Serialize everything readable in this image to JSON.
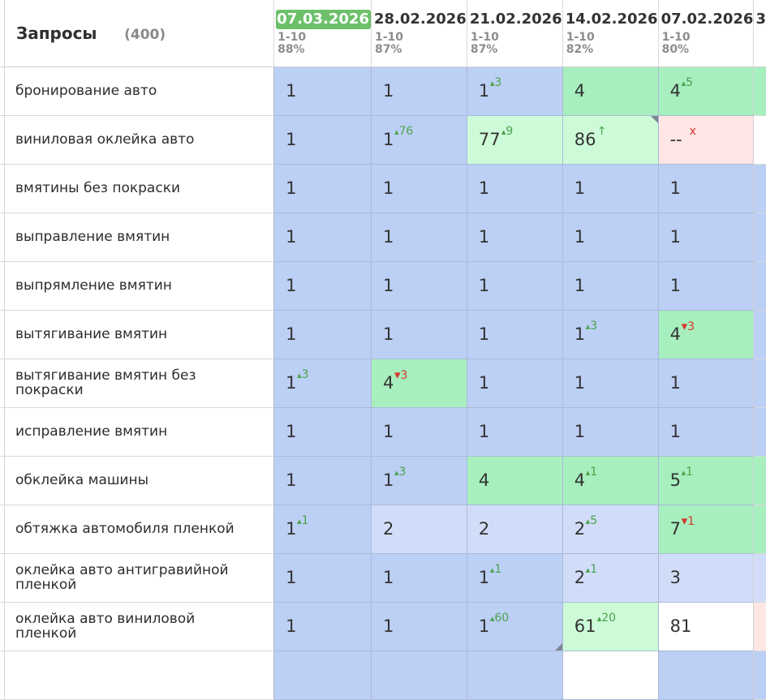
{
  "header": {
    "queries_title": "Запросы",
    "queries_count": "(400)",
    "next_date_stub": "3"
  },
  "dates": [
    {
      "date": "07.03.2026",
      "range": "1-10",
      "percent": "88%",
      "active": true
    },
    {
      "date": "28.02.2026",
      "range": "1-10",
      "percent": "87%",
      "active": false
    },
    {
      "date": "21.02.2026",
      "range": "1-10",
      "percent": "87%",
      "active": false
    },
    {
      "date": "14.02.2026",
      "range": "1-10",
      "percent": "82%",
      "active": false
    },
    {
      "date": "07.02.2026",
      "range": "1-10",
      "percent": "80%",
      "active": false
    }
  ],
  "rows": [
    {
      "query": "бронирование авто",
      "edge": "green",
      "cells": [
        {
          "value": "1",
          "color": "top"
        },
        {
          "value": "1",
          "color": "top"
        },
        {
          "value": "1",
          "color": "top",
          "delta": "3",
          "dir": "up"
        },
        {
          "value": "4",
          "color": "green"
        },
        {
          "value": "4",
          "color": "green",
          "delta": "5",
          "dir": "up"
        }
      ]
    },
    {
      "query": "виниловая оклейка авто",
      "edge": "white",
      "cells": [
        {
          "value": "1",
          "color": "top"
        },
        {
          "value": "1",
          "color": "top",
          "delta": "76",
          "dir": "up"
        },
        {
          "value": "77",
          "color": "lgreen",
          "delta": "9",
          "dir": "up"
        },
        {
          "value": "86",
          "color": "lgreen",
          "delta": "↑",
          "dir": "arrow",
          "corner": "top"
        },
        {
          "value": "--",
          "color": "red",
          "delta": "x",
          "dir": "x"
        }
      ]
    },
    {
      "query": "вмятины без покраски",
      "edge": "top",
      "cells": [
        {
          "value": "1",
          "color": "top"
        },
        {
          "value": "1",
          "color": "top"
        },
        {
          "value": "1",
          "color": "top"
        },
        {
          "value": "1",
          "color": "top"
        },
        {
          "value": "1",
          "color": "top"
        }
      ]
    },
    {
      "query": "выправление вмятин",
      "edge": "top",
      "cells": [
        {
          "value": "1",
          "color": "top"
        },
        {
          "value": "1",
          "color": "top"
        },
        {
          "value": "1",
          "color": "top"
        },
        {
          "value": "1",
          "color": "top"
        },
        {
          "value": "1",
          "color": "top"
        }
      ]
    },
    {
      "query": "выпрямление вмятин",
      "edge": "top",
      "cells": [
        {
          "value": "1",
          "color": "top"
        },
        {
          "value": "1",
          "color": "top"
        },
        {
          "value": "1",
          "color": "top"
        },
        {
          "value": "1",
          "color": "top"
        },
        {
          "value": "1",
          "color": "top"
        }
      ]
    },
    {
      "query": "вытягивание вмятин",
      "edge": "top",
      "cells": [
        {
          "value": "1",
          "color": "top"
        },
        {
          "value": "1",
          "color": "top"
        },
        {
          "value": "1",
          "color": "top"
        },
        {
          "value": "1",
          "color": "top",
          "delta": "3",
          "dir": "up"
        },
        {
          "value": "4",
          "color": "green",
          "delta": "3",
          "dir": "down"
        }
      ]
    },
    {
      "query": "вытягивание вмятин без покраски",
      "edge": "top",
      "cells": [
        {
          "value": "1",
          "color": "top",
          "delta": "3",
          "dir": "up"
        },
        {
          "value": "4",
          "color": "green",
          "delta": "3",
          "dir": "down"
        },
        {
          "value": "1",
          "color": "top"
        },
        {
          "value": "1",
          "color": "top"
        },
        {
          "value": "1",
          "color": "top"
        }
      ]
    },
    {
      "query": "исправление вмятин",
      "edge": "top",
      "cells": [
        {
          "value": "1",
          "color": "top"
        },
        {
          "value": "1",
          "color": "top"
        },
        {
          "value": "1",
          "color": "top"
        },
        {
          "value": "1",
          "color": "top"
        },
        {
          "value": "1",
          "color": "top"
        }
      ]
    },
    {
      "query": "обклейка машины",
      "edge": "green",
      "cells": [
        {
          "value": "1",
          "color": "top"
        },
        {
          "value": "1",
          "color": "top",
          "delta": "3",
          "dir": "up"
        },
        {
          "value": "4",
          "color": "green"
        },
        {
          "value": "4",
          "color": "green",
          "delta": "1",
          "dir": "up"
        },
        {
          "value": "5",
          "color": "green",
          "delta": "1",
          "dir": "up"
        }
      ]
    },
    {
      "query": "обтяжка автомобиля пленкой",
      "edge": "green",
      "cells": [
        {
          "value": "1",
          "color": "top",
          "delta": "1",
          "dir": "up"
        },
        {
          "value": "2",
          "color": "mid"
        },
        {
          "value": "2",
          "color": "mid"
        },
        {
          "value": "2",
          "color": "mid",
          "delta": "5",
          "dir": "up"
        },
        {
          "value": "7",
          "color": "green",
          "delta": "1",
          "dir": "down"
        }
      ]
    },
    {
      "query": "оклейка авто антигравийной пленкой",
      "edge": "mid",
      "cells": [
        {
          "value": "1",
          "color": "top"
        },
        {
          "value": "1",
          "color": "top"
        },
        {
          "value": "1",
          "color": "top",
          "delta": "1",
          "dir": "up"
        },
        {
          "value": "2",
          "color": "mid",
          "delta": "1",
          "dir": "up"
        },
        {
          "value": "3",
          "color": "mid"
        }
      ]
    },
    {
      "query": "оклейка авто виниловой пленкой",
      "edge": "red",
      "cells": [
        {
          "value": "1",
          "color": "top"
        },
        {
          "value": "1",
          "color": "top"
        },
        {
          "value": "1",
          "color": "top",
          "delta": "60",
          "dir": "up",
          "corner": "bottom"
        },
        {
          "value": "61",
          "color": "lgreen",
          "delta": "20",
          "dir": "up"
        },
        {
          "value": "81",
          "color": "white"
        }
      ]
    }
  ],
  "partial_row": {
    "edge": "top",
    "cells": [
      "top",
      "top",
      "top",
      "white",
      "top"
    ]
  }
}
